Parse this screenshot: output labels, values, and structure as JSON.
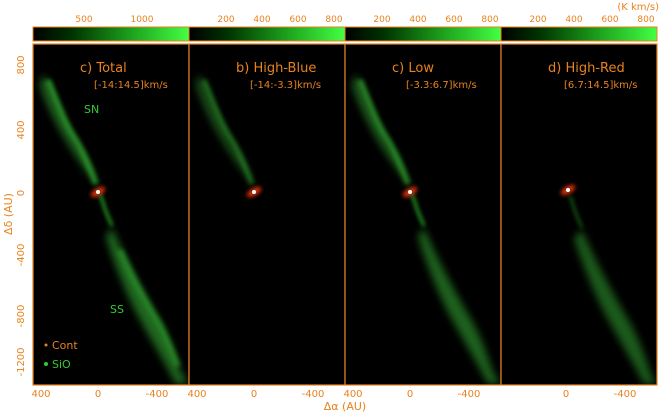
{
  "figure": {
    "colorbar_unit": "(K km/s)",
    "colorbars": [
      {
        "ticks": [
          "500",
          "1000"
        ]
      },
      {
        "ticks": [
          "200",
          "400",
          "600",
          "800"
        ]
      },
      {
        "ticks": [
          "200",
          "400",
          "600",
          "800"
        ]
      },
      {
        "ticks": [
          "200",
          "400",
          "600",
          "800"
        ]
      }
    ],
    "panels": [
      {
        "title": "c) Total",
        "range": "[-14:14.5]km/s"
      },
      {
        "title": "b) High-Blue",
        "range": "[-14:-3.3]km/s"
      },
      {
        "title": "c) Low",
        "range": "[-3.3:6.7]km/s"
      },
      {
        "title": "d) High-Red",
        "range": "[6.7:14.5]km/s"
      }
    ],
    "labels": {
      "sn": "SN",
      "ss": "SS",
      "cont": "Cont",
      "sio": "SiO"
    },
    "y_axis": {
      "label": "Δδ (AU)",
      "ticks": [
        "800",
        "400",
        "0",
        "-400",
        "-800",
        "-1200"
      ]
    },
    "x_axis": {
      "label": "Δα (AU)",
      "ticks": [
        "400",
        "0",
        "-400"
      ]
    },
    "colors": {
      "axis": "#e8821e",
      "emission": "#33cc33",
      "continuum": "#ff3300",
      "background": "#000000"
    }
  }
}
